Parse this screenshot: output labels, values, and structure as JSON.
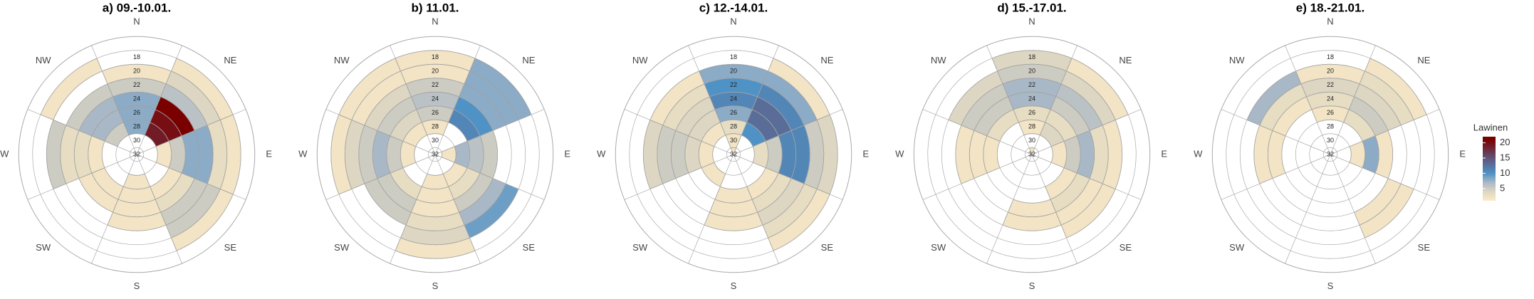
{
  "chart_data": {
    "type": "polar-heatmap",
    "directions": [
      "N",
      "NE",
      "E",
      "SE",
      "S",
      "SW",
      "W",
      "NW"
    ],
    "rings": [
      18,
      20,
      22,
      24,
      26,
      28,
      30,
      32
    ],
    "legend_title": "Lawinen",
    "clim": [
      1,
      22
    ],
    "cticks": [
      5,
      10,
      15,
      20
    ],
    "colorscale": [
      [
        1,
        "#fcebc6"
      ],
      [
        4,
        "#ddd6c2"
      ],
      [
        7,
        "#a9b8c6"
      ],
      [
        10,
        "#4f92c6"
      ],
      [
        14,
        "#5c6088"
      ],
      [
        21,
        "#7a0000"
      ]
    ],
    "panels": [
      {
        "title": "a) 09.-10.01.",
        "values": [
          [
            null,
            2,
            5,
            8,
            8,
            8,
            null,
            null
          ],
          [
            2,
            4,
            6,
            21,
            20,
            19,
            null,
            null
          ],
          [
            2,
            3,
            8,
            8,
            5,
            2,
            null,
            null
          ],
          [
            2,
            5,
            5,
            3,
            2,
            null,
            null,
            null
          ],
          [
            null,
            null,
            2,
            2,
            2,
            2,
            null,
            null
          ],
          [
            null,
            null,
            null,
            2,
            2,
            null,
            null,
            null
          ],
          [
            null,
            5,
            3,
            3,
            2,
            null,
            null,
            null
          ],
          [
            2,
            null,
            5,
            7,
            7,
            5,
            null,
            null
          ]
        ]
      },
      {
        "title": "b) 11.01.",
        "values": [
          [
            2,
            2,
            5,
            6,
            5,
            2,
            null,
            null
          ],
          [
            8,
            8,
            8,
            10,
            11,
            null,
            null,
            null
          ],
          [
            null,
            null,
            null,
            5,
            6,
            7,
            2,
            null
          ],
          [
            null,
            9,
            7,
            5,
            3,
            2,
            null,
            null
          ],
          [
            2,
            4,
            3,
            2,
            2,
            2,
            null,
            null
          ],
          [
            null,
            null,
            5,
            5,
            3,
            null,
            null,
            null
          ],
          [
            2,
            4,
            5,
            7,
            5,
            2,
            null,
            null
          ],
          [
            2,
            2,
            4,
            5,
            4,
            2,
            null,
            null
          ]
        ]
      },
      {
        "title": "c) 12.-14.01.",
        "values": [
          [
            null,
            8,
            10,
            11,
            8,
            3,
            2,
            2
          ],
          [
            2,
            8,
            11,
            13,
            13,
            10,
            null,
            null
          ],
          [
            4,
            5,
            11,
            11,
            5,
            3,
            null,
            null
          ],
          [
            2,
            3,
            4,
            3,
            2,
            null,
            null,
            null
          ],
          [
            null,
            null,
            2,
            2,
            2,
            null,
            null,
            null
          ],
          [
            null,
            null,
            null,
            null,
            null,
            2,
            null,
            null
          ],
          [
            null,
            4,
            5,
            5,
            4,
            2,
            null,
            null
          ],
          [
            null,
            2,
            3,
            4,
            4,
            2,
            null,
            null
          ]
        ]
      },
      {
        "title": "d) 15.-17.01.",
        "values": [
          [
            4,
            5,
            7,
            7,
            3,
            2,
            null,
            2
          ],
          [
            2,
            4,
            6,
            5,
            3,
            4,
            null,
            null
          ],
          [
            null,
            2,
            3,
            7,
            5,
            2,
            null,
            null
          ],
          [
            null,
            2,
            2,
            3,
            2,
            null,
            null,
            null
          ],
          [
            null,
            null,
            2,
            2,
            null,
            null,
            null,
            null
          ],
          [
            null,
            null,
            null,
            null,
            null,
            null,
            null,
            null
          ],
          [
            null,
            null,
            2,
            2,
            2,
            null,
            null,
            null
          ],
          [
            null,
            4,
            5,
            5,
            3,
            null,
            null,
            null
          ]
        ]
      },
      {
        "title": "e) 18.-21.01.",
        "values": [
          [
            null,
            2,
            4,
            3,
            2,
            null,
            null,
            null
          ],
          [
            2,
            3,
            4,
            5,
            3,
            null,
            null,
            null
          ],
          [
            null,
            null,
            null,
            2,
            8,
            2,
            null,
            null
          ],
          [
            null,
            2,
            2,
            null,
            null,
            null,
            null,
            null
          ],
          [
            null,
            null,
            null,
            null,
            null,
            null,
            null,
            null
          ],
          [
            null,
            null,
            null,
            null,
            null,
            null,
            null,
            null
          ],
          [
            null,
            null,
            2,
            2,
            null,
            null,
            null,
            null
          ],
          [
            null,
            7,
            3,
            2,
            null,
            null,
            null,
            null
          ]
        ]
      }
    ]
  }
}
